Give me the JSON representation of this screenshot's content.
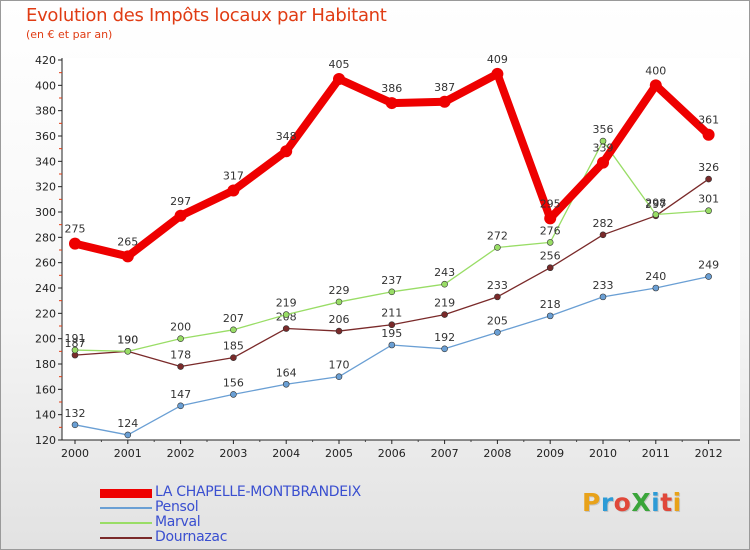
{
  "header": {
    "title": "Evolution des Impôts locaux par Habitant",
    "subtitle": "(en € et par an)"
  },
  "brand": {
    "text": "ProXiti",
    "letter_colors": [
      "#e8a21a",
      "#2d9bd6",
      "#e0483a",
      "#3aa53a",
      "#2d9bd6",
      "#e0483a",
      "#e8a21a"
    ]
  },
  "chart_data": {
    "type": "line",
    "title": "Evolution des Impôts locaux par Habitant",
    "subtitle": "(en € et par an)",
    "xlabel": "",
    "ylabel": "",
    "categories": [
      "2000",
      "2001",
      "2002",
      "2003",
      "2004",
      "2005",
      "2006",
      "2007",
      "2008",
      "2009",
      "2010",
      "2011",
      "2012"
    ],
    "ylim": [
      120,
      420
    ],
    "yticks": [
      120,
      140,
      160,
      180,
      200,
      220,
      240,
      260,
      280,
      300,
      320,
      340,
      360,
      380,
      400,
      420
    ],
    "grid": false,
    "legend_position": "bottom-left",
    "series": [
      {
        "name": "LA CHAPELLE-MONTBRANDEIX",
        "color": "#ee0000",
        "values": [
          275,
          265,
          297,
          317,
          348,
          405,
          386,
          387,
          409,
          295,
          339,
          400,
          361
        ]
      },
      {
        "name": "Pensol",
        "color": "#6a9fd4",
        "values": [
          132,
          124,
          147,
          156,
          164,
          170,
          195,
          192,
          205,
          218,
          233,
          240,
          249
        ]
      },
      {
        "name": "Marval",
        "color": "#99dd66",
        "values": [
          191,
          190,
          200,
          207,
          219,
          229,
          237,
          243,
          272,
          276,
          356,
          298,
          301
        ]
      },
      {
        "name": "Dournazac",
        "color": "#7a2a2a",
        "values": [
          187,
          190,
          178,
          185,
          208,
          206,
          211,
          219,
          233,
          256,
          282,
          297,
          326
        ]
      }
    ]
  }
}
